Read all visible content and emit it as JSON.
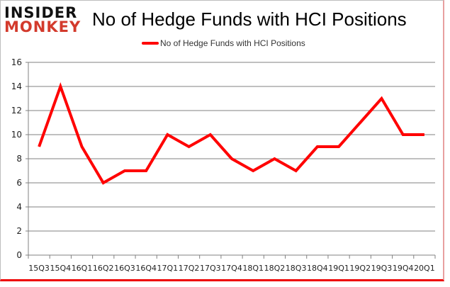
{
  "logo": {
    "line1": "INSIDER",
    "line2": "MONKEY"
  },
  "colors": {
    "series": "#ff0000",
    "grid": "#808080",
    "logo_red": "#d33a2c"
  },
  "chart_data": {
    "type": "line",
    "title": "No of Hedge Funds with HCI Positions",
    "xlabel": "",
    "ylabel": "",
    "categories": [
      "15Q3",
      "15Q4",
      "16Q1",
      "16Q2",
      "16Q3",
      "16Q4",
      "17Q1",
      "17Q2",
      "17Q3",
      "17Q4",
      "18Q1",
      "18Q2",
      "18Q3",
      "18Q4",
      "19Q1",
      "19Q2",
      "19Q3",
      "19Q4",
      "20Q1"
    ],
    "series": [
      {
        "name": "No of Hedge Funds with HCI Positions",
        "values": [
          9,
          14,
          9,
          6,
          7,
          7,
          10,
          9,
          10,
          8,
          7,
          8,
          7,
          9,
          9,
          11,
          13,
          10,
          10
        ]
      }
    ],
    "ylim": [
      0,
      16
    ],
    "yticks": [
      0,
      2,
      4,
      6,
      8,
      10,
      12,
      14,
      16
    ],
    "grid": true,
    "legend_position": "top"
  }
}
